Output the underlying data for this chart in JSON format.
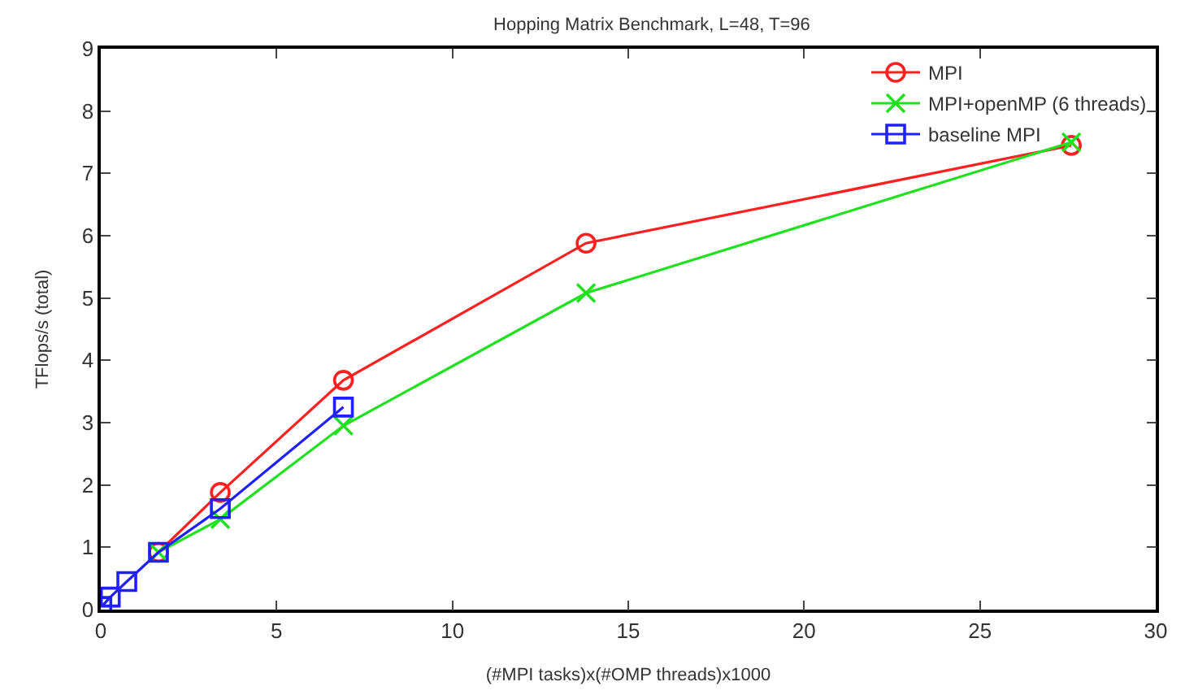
{
  "chart_data": {
    "type": "line",
    "title": "Hopping Matrix Benchmark, L=48, T=96",
    "xlabel": "(#MPI tasks)x(#OMP threads)x1000",
    "ylabel": "TFlops/s (total)",
    "xlim": [
      0,
      30
    ],
    "xticks": [
      0,
      5,
      10,
      15,
      20,
      25,
      30
    ],
    "ylim": [
      0,
      9
    ],
    "yticks": [
      0,
      1,
      2,
      3,
      4,
      5,
      6,
      7,
      8,
      9
    ],
    "grid": false,
    "legend": "top right",
    "line_style": "solid",
    "series": [
      {
        "name": "MPI",
        "color": "#ff2020",
        "marker": "circle",
        "x": [
          1.64,
          3.4,
          6.9,
          13.8,
          27.6
        ],
        "values": [
          0.92,
          1.88,
          3.68,
          5.88,
          7.45
        ]
      },
      {
        "name": "MPI+openMP (6 threads)",
        "color": "#20e020",
        "marker": "cross",
        "x": [
          1.64,
          3.4,
          6.9,
          13.8,
          27.6
        ],
        "values": [
          0.92,
          1.45,
          2.95,
          5.08,
          7.5
        ]
      },
      {
        "name": "baseline MPI",
        "color": "#2020ff",
        "marker": "square",
        "x": [
          0.03,
          0.27,
          0.74,
          1.64,
          3.4,
          6.9
        ],
        "values": [
          0.05,
          0.2,
          0.45,
          0.92,
          1.62,
          3.25
        ]
      }
    ]
  }
}
